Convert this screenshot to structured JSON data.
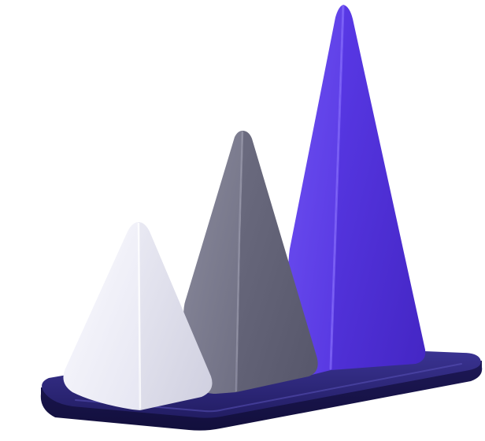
{
  "illustration": {
    "subject": "pyramid-bar-chart-3d",
    "icons": [
      "base-platform",
      "pyramid-small",
      "pyramid-medium",
      "pyramid-large"
    ],
    "colors": {
      "background": "#ffffff",
      "base_top": "#2a2472",
      "base_front": "#16124a",
      "pyramid_small": "#e4e4f0",
      "pyramid_medium": "#76768a",
      "pyramid_large": "#5b3fe6"
    }
  }
}
